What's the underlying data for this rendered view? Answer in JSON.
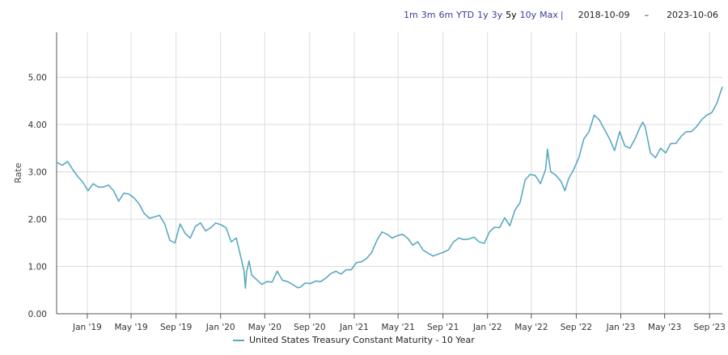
{
  "range_selector": {
    "buttons": [
      "1m",
      "3m",
      "6m",
      "YTD",
      "1y",
      "3y",
      "5y",
      "10y",
      "Max"
    ],
    "active": "5y",
    "separator": "|",
    "from_date": "2018-10-09",
    "dash": "–",
    "to_date": "2023-10-06"
  },
  "colors": {
    "series": "#5aa9c2",
    "grid": "#dcdcdc",
    "axis": "#555555"
  },
  "chart_data": {
    "type": "line",
    "ylabel": "Rate",
    "ylim": [
      0,
      5.95
    ],
    "yticks": [
      0,
      1,
      2,
      3,
      4,
      5
    ],
    "ytick_labels": [
      "0.00",
      "1.00",
      "2.00",
      "3.00",
      "4.00",
      "5.00"
    ],
    "xlim": [
      "2018-10-09",
      "2023-10-06"
    ],
    "xticks": [
      "2019-01-01",
      "2019-05-01",
      "2019-09-01",
      "2020-01-01",
      "2020-05-01",
      "2020-09-01",
      "2021-01-01",
      "2021-05-01",
      "2021-09-01",
      "2022-01-01",
      "2022-05-01",
      "2022-09-01",
      "2023-01-01",
      "2023-05-01",
      "2023-09-01"
    ],
    "xtick_labels": [
      "Jan '19",
      "May '19",
      "Sep '19",
      "Jan '20",
      "May '20",
      "Sep '20",
      "Jan '21",
      "May '21",
      "Sep '21",
      "Jan '22",
      "May '22",
      "Sep '22",
      "Jan '23",
      "May '23",
      "Sep '23"
    ],
    "grid": true,
    "legend_position": "bottom",
    "series": [
      {
        "name": "United States Treasury Constant Maturity - 10 Year",
        "x": [
          "2018-10-09",
          "2018-10-25",
          "2018-11-08",
          "2018-11-22",
          "2018-12-06",
          "2018-12-20",
          "2019-01-03",
          "2019-01-17",
          "2019-01-31",
          "2019-02-14",
          "2019-02-28",
          "2019-03-14",
          "2019-03-28",
          "2019-04-11",
          "2019-04-25",
          "2019-05-09",
          "2019-05-23",
          "2019-06-06",
          "2019-06-20",
          "2019-07-04",
          "2019-07-18",
          "2019-08-01",
          "2019-08-15",
          "2019-08-29",
          "2019-09-12",
          "2019-09-26",
          "2019-10-10",
          "2019-10-24",
          "2019-11-07",
          "2019-11-21",
          "2019-12-05",
          "2019-12-19",
          "2020-01-02",
          "2020-01-16",
          "2020-01-30",
          "2020-02-13",
          "2020-02-27",
          "2020-03-05",
          "2020-03-09",
          "2020-03-12",
          "2020-03-19",
          "2020-03-26",
          "2020-04-09",
          "2020-04-23",
          "2020-05-07",
          "2020-05-21",
          "2020-06-04",
          "2020-06-18",
          "2020-07-02",
          "2020-07-16",
          "2020-07-30",
          "2020-08-06",
          "2020-08-20",
          "2020-09-03",
          "2020-09-17",
          "2020-10-01",
          "2020-10-15",
          "2020-10-29",
          "2020-11-12",
          "2020-11-26",
          "2020-12-10",
          "2020-12-24",
          "2021-01-07",
          "2021-01-21",
          "2021-02-04",
          "2021-02-18",
          "2021-03-04",
          "2021-03-18",
          "2021-04-01",
          "2021-04-15",
          "2021-04-29",
          "2021-05-13",
          "2021-05-27",
          "2021-06-10",
          "2021-06-24",
          "2021-07-08",
          "2021-07-22",
          "2021-08-05",
          "2021-08-19",
          "2021-09-02",
          "2021-09-16",
          "2021-09-30",
          "2021-10-14",
          "2021-10-28",
          "2021-11-11",
          "2021-11-25",
          "2021-12-09",
          "2021-12-23",
          "2022-01-06",
          "2022-01-20",
          "2022-02-03",
          "2022-02-17",
          "2022-03-03",
          "2022-03-17",
          "2022-03-31",
          "2022-04-14",
          "2022-04-28",
          "2022-05-12",
          "2022-05-26",
          "2022-06-09",
          "2022-06-14",
          "2022-06-23",
          "2022-07-07",
          "2022-07-21",
          "2022-08-01",
          "2022-08-11",
          "2022-08-25",
          "2022-09-08",
          "2022-09-22",
          "2022-10-06",
          "2022-10-20",
          "2022-11-03",
          "2022-11-17",
          "2022-12-01",
          "2022-12-15",
          "2022-12-29",
          "2023-01-12",
          "2023-01-26",
          "2023-02-09",
          "2023-02-23",
          "2023-03-02",
          "2023-03-09",
          "2023-03-23",
          "2023-04-06",
          "2023-04-20",
          "2023-05-04",
          "2023-05-18",
          "2023-06-01",
          "2023-06-15",
          "2023-06-29",
          "2023-07-13",
          "2023-07-27",
          "2023-08-10",
          "2023-08-24",
          "2023-09-07",
          "2023-09-21",
          "2023-10-06"
        ],
        "y": [
          3.2,
          3.14,
          3.22,
          3.05,
          2.9,
          2.78,
          2.6,
          2.75,
          2.68,
          2.68,
          2.72,
          2.6,
          2.38,
          2.55,
          2.53,
          2.45,
          2.32,
          2.12,
          2.02,
          2.05,
          2.08,
          1.9,
          1.55,
          1.5,
          1.9,
          1.7,
          1.6,
          1.85,
          1.92,
          1.75,
          1.82,
          1.92,
          1.88,
          1.82,
          1.52,
          1.6,
          1.15,
          0.91,
          0.54,
          0.88,
          1.12,
          0.82,
          0.72,
          0.62,
          0.68,
          0.67,
          0.9,
          0.71,
          0.68,
          0.62,
          0.55,
          0.56,
          0.65,
          0.64,
          0.69,
          0.68,
          0.75,
          0.85,
          0.9,
          0.84,
          0.93,
          0.93,
          1.08,
          1.1,
          1.17,
          1.3,
          1.55,
          1.73,
          1.68,
          1.6,
          1.65,
          1.68,
          1.6,
          1.45,
          1.52,
          1.35,
          1.28,
          1.22,
          1.26,
          1.3,
          1.35,
          1.52,
          1.6,
          1.57,
          1.58,
          1.62,
          1.52,
          1.49,
          1.73,
          1.83,
          1.82,
          2.03,
          1.86,
          2.19,
          2.35,
          2.83,
          2.95,
          2.92,
          2.75,
          3.05,
          3.48,
          3.0,
          2.93,
          2.8,
          2.6,
          2.85,
          3.05,
          3.3,
          3.7,
          3.85,
          4.2,
          4.1,
          3.9,
          3.7,
          3.45,
          3.85,
          3.55,
          3.5,
          3.7,
          3.95,
          4.05,
          3.95,
          3.4,
          3.3,
          3.5,
          3.4,
          3.6,
          3.6,
          3.75,
          3.85,
          3.85,
          3.95,
          4.1,
          4.2,
          4.25,
          4.45,
          4.8
        ]
      }
    ]
  }
}
